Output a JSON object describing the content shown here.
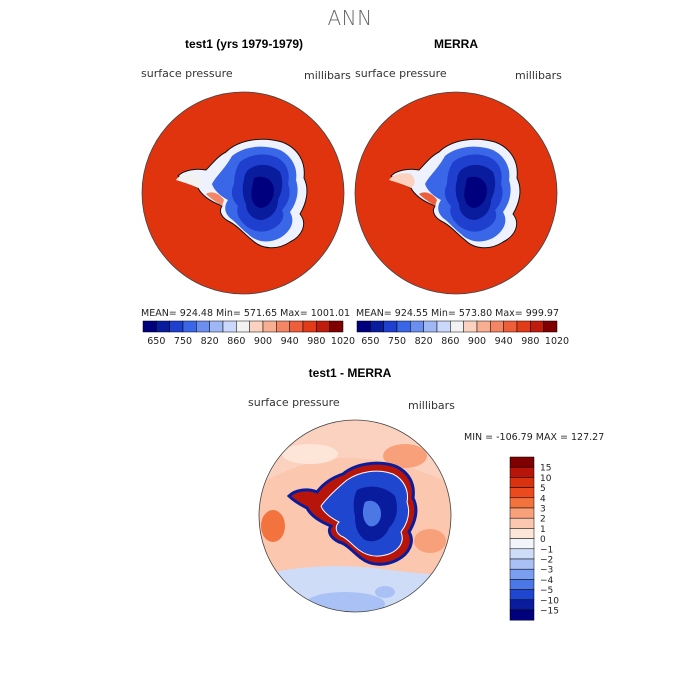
{
  "title": "ANN",
  "panels": [
    {
      "title": "test1 (yrs 1979-1979)",
      "variable": "surface pressure",
      "units": "millibars",
      "stats": "MEAN= 924.48  Min= 571.65  Max= 1001.01"
    },
    {
      "title": "MERRA",
      "variable": "surface pressure",
      "units": "millibars",
      "stats": "MEAN= 924.55  Min= 573.80  Max= 999.97"
    }
  ],
  "colorbar_top": {
    "ticks": [
      "650",
      "750",
      "820",
      "860",
      "900",
      "940",
      "980",
      "1020"
    ],
    "colors": [
      "#00007f",
      "#0a1c9e",
      "#1f3fcf",
      "#3a66e8",
      "#6a8ff0",
      "#9fb8f5",
      "#c9d8fb",
      "#f2f2f2",
      "#fbd2c0",
      "#f8ae90",
      "#f48665",
      "#ee5e3a",
      "#e23b18",
      "#c01c0b",
      "#7f0000"
    ]
  },
  "diff": {
    "title": "test1 - MERRA",
    "variable": "surface pressure",
    "units": "millibars",
    "stats": "MIN = -106.79  MAX = 127.27",
    "legend_labels": [
      "15",
      "10",
      "5",
      "4",
      "3",
      "2",
      "1",
      "0",
      "−1",
      "−2",
      "−3",
      "−4",
      "−5",
      "−10",
      "−15"
    ],
    "legend_colors": [
      "#7f0000",
      "#b8150a",
      "#d9320f",
      "#ea4a1e",
      "#f3733f",
      "#f8a07a",
      "#fbc7ae",
      "#fde6d8",
      "#f2f4fa",
      "#cfdcf8",
      "#a9c1f5",
      "#7a9ff0",
      "#4c78e6",
      "#1f46cf",
      "#0a1c9e",
      "#00007f"
    ]
  },
  "colors": {
    "ocean_high": "#e0340f",
    "ice_low": "#0b1fa8"
  }
}
